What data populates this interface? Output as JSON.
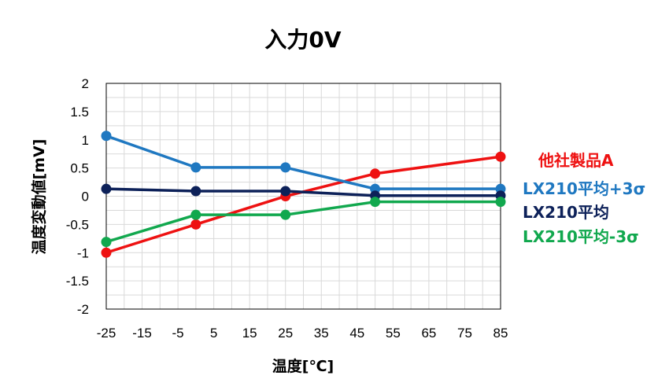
{
  "chart_data": {
    "type": "line",
    "title": "入力0V",
    "xlabel": "温度[℃]",
    "ylabel": "温度変動値[mV]",
    "xlim": [
      -25,
      85
    ],
    "ylim": [
      -2,
      2
    ],
    "xticks": [
      "-25",
      "-15",
      "-5",
      "5",
      "15",
      "25",
      "35",
      "45",
      "55",
      "65",
      "75",
      "85"
    ],
    "yticks": [
      "2",
      "1.5",
      "1",
      "0.5",
      "0",
      "-0.5",
      "-1",
      "-1.5",
      "-2"
    ],
    "grid": true,
    "legend_position": "right",
    "x": [
      -25,
      0,
      25,
      50,
      85
    ],
    "series": [
      {
        "name": "他社製品A",
        "color": "#ee1111",
        "values": [
          -1.0,
          -0.5,
          0.0,
          0.4,
          0.7
        ]
      },
      {
        "name": "LX210平均+3σ",
        "color": "#1f78c1",
        "values": [
          1.07,
          0.51,
          0.51,
          0.13,
          0.13
        ]
      },
      {
        "name": "LX210平均",
        "color": "#0d2159",
        "values": [
          0.13,
          0.09,
          0.09,
          0.01,
          0.01
        ]
      },
      {
        "name": "LX210平均-3σ",
        "color": "#11a84e",
        "values": [
          -0.81,
          -0.33,
          -0.33,
          -0.1,
          -0.1
        ]
      }
    ]
  }
}
